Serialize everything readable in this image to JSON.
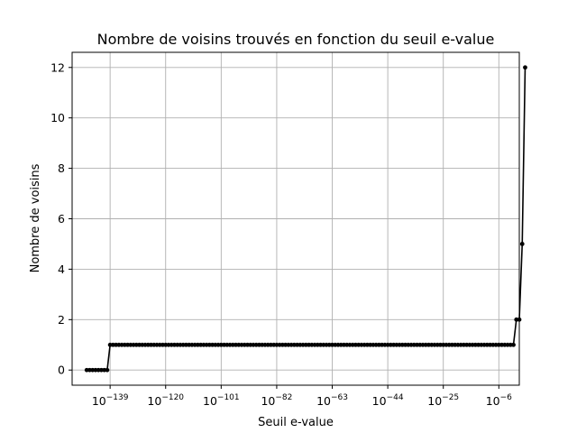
{
  "chart_data": {
    "type": "line",
    "title": "Nombre de voisins trouvés en fonction du seuil e-value",
    "xlabel": "Seuil e-value",
    "ylabel": "Nombre de voisins",
    "x_scale": "log",
    "x_exponent_range": [
      -152,
      1
    ],
    "ylim": [
      -0.6,
      12.6
    ],
    "grid": true,
    "x_ticks": [
      {
        "base": "10",
        "exp": "−139",
        "value": -139
      },
      {
        "base": "10",
        "exp": "−120",
        "value": -120
      },
      {
        "base": "10",
        "exp": "−101",
        "value": -101
      },
      {
        "base": "10",
        "exp": "−82",
        "value": -82
      },
      {
        "base": "10",
        "exp": "−63",
        "value": -63
      },
      {
        "base": "10",
        "exp": "−44",
        "value": -44
      },
      {
        "base": "10",
        "exp": "−25",
        "value": -25
      },
      {
        "base": "10",
        "exp": "−6",
        "value": -6
      }
    ],
    "y_ticks": [
      0,
      2,
      4,
      6,
      8,
      10,
      12
    ],
    "series": [
      {
        "color": "#000000",
        "marker": "circle",
        "exponent_start": -147,
        "exponent_step": 1,
        "values": [
          0,
          0,
          0,
          0,
          0,
          0,
          0,
          0,
          1,
          1,
          1,
          1,
          1,
          1,
          1,
          1,
          1,
          1,
          1,
          1,
          1,
          1,
          1,
          1,
          1,
          1,
          1,
          1,
          1,
          1,
          1,
          1,
          1,
          1,
          1,
          1,
          1,
          1,
          1,
          1,
          1,
          1,
          1,
          1,
          1,
          1,
          1,
          1,
          1,
          1,
          1,
          1,
          1,
          1,
          1,
          1,
          1,
          1,
          1,
          1,
          1,
          1,
          1,
          1,
          1,
          1,
          1,
          1,
          1,
          1,
          1,
          1,
          1,
          1,
          1,
          1,
          1,
          1,
          1,
          1,
          1,
          1,
          1,
          1,
          1,
          1,
          1,
          1,
          1,
          1,
          1,
          1,
          1,
          1,
          1,
          1,
          1,
          1,
          1,
          1,
          1,
          1,
          1,
          1,
          1,
          1,
          1,
          1,
          1,
          1,
          1,
          1,
          1,
          1,
          1,
          1,
          1,
          1,
          1,
          1,
          1,
          1,
          1,
          1,
          1,
          1,
          1,
          1,
          1,
          1,
          1,
          1,
          1,
          1,
          1,
          1,
          1,
          1,
          1,
          1,
          1,
          1,
          1,
          1,
          1,
          1,
          1,
          2,
          2,
          5,
          12
        ]
      }
    ]
  }
}
